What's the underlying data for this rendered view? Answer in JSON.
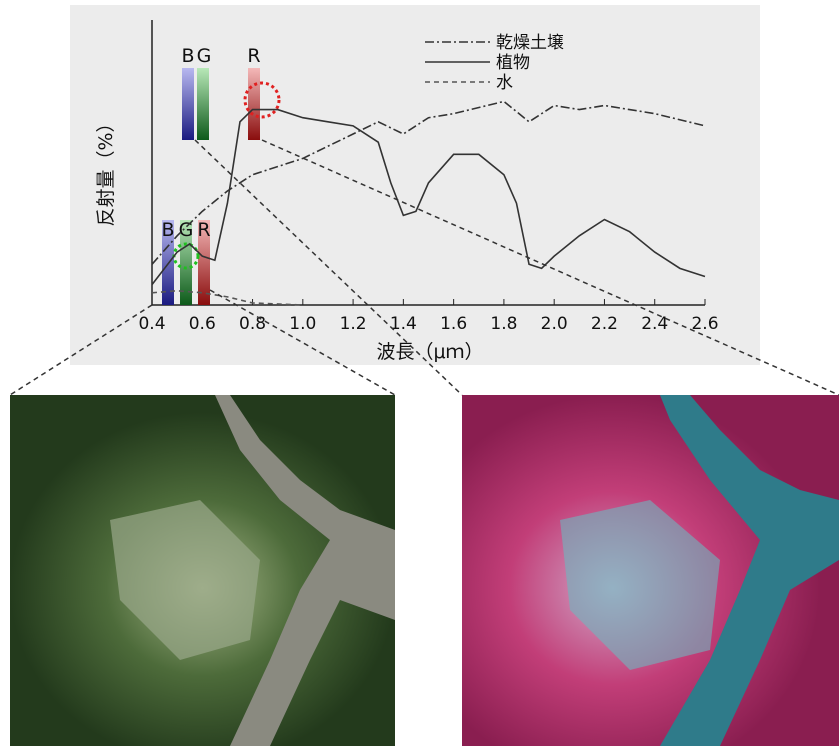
{
  "chart_data": {
    "type": "line",
    "ylabel": "反射量（%）",
    "xlabel": "波長（μｍ）",
    "xlim": [
      0.4,
      2.6
    ],
    "ylim": [
      0,
      70
    ],
    "xticks": [
      0.4,
      0.6,
      0.8,
      {
        "value": 1,
        "label": "1.0"
      },
      1.2,
      1.4,
      1.6,
      1.8,
      {
        "value": 2,
        "label": "2.0"
      },
      2.2,
      2.4,
      2.6
    ],
    "band_labels_upper": [
      "B",
      "G",
      "R"
    ],
    "band_labels_lower": [
      "B",
      "G",
      "R"
    ],
    "series": [
      {
        "name": "乾燥土壌",
        "color": "#333333",
        "style": "dash-dot",
        "x": [
          0.4,
          0.5,
          0.6,
          0.7,
          0.8,
          1.0,
          1.2,
          1.3,
          1.4,
          1.5,
          1.6,
          1.8,
          1.9,
          2.0,
          2.1,
          2.2,
          2.4,
          2.6
        ],
        "values": [
          10,
          17,
          23,
          28,
          32,
          36,
          42,
          45,
          42,
          46,
          47,
          50,
          45,
          49,
          48,
          49,
          47,
          44
        ]
      },
      {
        "name": "植物",
        "color": "#333333",
        "style": "solid",
        "x": [
          0.4,
          0.45,
          0.5,
          0.55,
          0.6,
          0.65,
          0.7,
          0.75,
          0.8,
          0.9,
          1.0,
          1.1,
          1.2,
          1.3,
          1.35,
          1.4,
          1.45,
          1.5,
          1.6,
          1.7,
          1.8,
          1.85,
          1.9,
          1.95,
          2.0,
          2.1,
          2.2,
          2.3,
          2.4,
          2.5,
          2.6
        ],
        "values": [
          5,
          9,
          13,
          15,
          12,
          11,
          25,
          45,
          48,
          48,
          46,
          45,
          44,
          40,
          30,
          22,
          23,
          30,
          37,
          37,
          32,
          25,
          10,
          9,
          12,
          17,
          21,
          18,
          13,
          9,
          7
        ]
      },
      {
        "name": "水",
        "color": "#555555",
        "style": "dashed",
        "x": [
          0.4,
          0.5,
          0.6,
          0.7,
          0.8,
          1.0
        ],
        "values": [
          3,
          3.5,
          3,
          2,
          0.5,
          0
        ]
      }
    ]
  }
}
